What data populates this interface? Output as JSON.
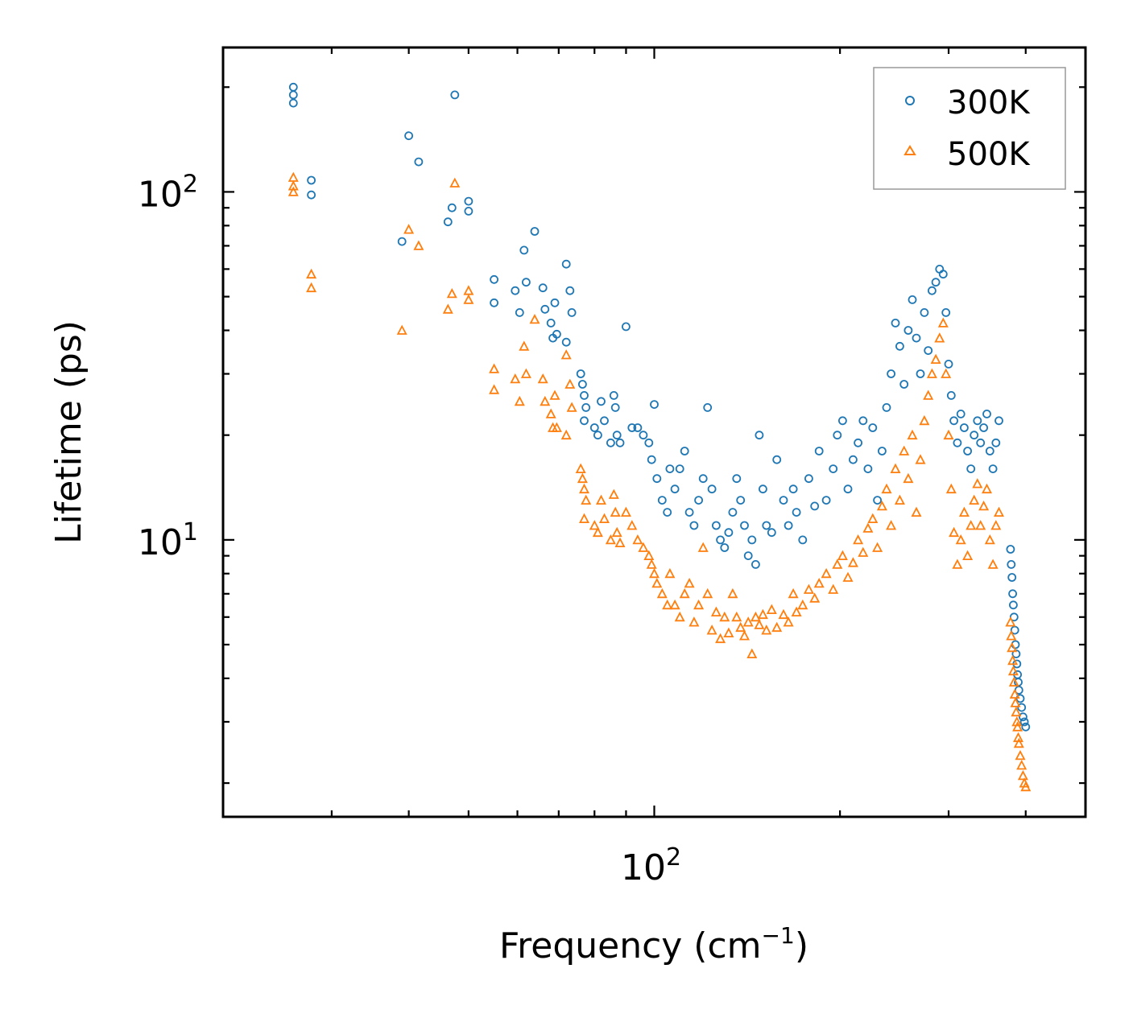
{
  "chart_data": {
    "type": "scatter",
    "title": "",
    "xlabel": "Frequency (cm",
    "xlabel_sup": "−1",
    "xlabel_suffix": ")",
    "ylabel": "Lifetime (ps)",
    "xscale": "log",
    "yscale": "log",
    "xlim": [
      20,
      500
    ],
    "ylim": [
      1.6,
      260
    ],
    "x_ticks": [
      {
        "value": 100,
        "base": "10",
        "exp": "2"
      }
    ],
    "y_ticks": [
      {
        "value": 10,
        "base": "10",
        "exp": "1"
      },
      {
        "value": 100,
        "base": "10",
        "exp": "2"
      }
    ],
    "legend_position": "top-right",
    "series": [
      {
        "name": "300K",
        "marker": "circle",
        "color": "#1f77b4",
        "points": [
          [
            26,
            200
          ],
          [
            26,
            190
          ],
          [
            26,
            180
          ],
          [
            27.8,
            108
          ],
          [
            27.8,
            98
          ],
          [
            40,
            145
          ],
          [
            39,
            72
          ],
          [
            41.5,
            122
          ],
          [
            47.5,
            190
          ],
          [
            47,
            90
          ],
          [
            46.3,
            82
          ],
          [
            50,
            94
          ],
          [
            50,
            88
          ],
          [
            55,
            56
          ],
          [
            55,
            48
          ],
          [
            59.5,
            52
          ],
          [
            60.5,
            45
          ],
          [
            61.5,
            68
          ],
          [
            62,
            55
          ],
          [
            64,
            77
          ],
          [
            66,
            53
          ],
          [
            66.5,
            46
          ],
          [
            68,
            42
          ],
          [
            68.5,
            38
          ],
          [
            69,
            48
          ],
          [
            69.5,
            39
          ],
          [
            72,
            62
          ],
          [
            72,
            37
          ],
          [
            73,
            52
          ],
          [
            73.5,
            45
          ],
          [
            76,
            30
          ],
          [
            76.5,
            28
          ],
          [
            77,
            26
          ],
          [
            77.5,
            24
          ],
          [
            77,
            22
          ],
          [
            80,
            21
          ],
          [
            81,
            20
          ],
          [
            82,
            25
          ],
          [
            83,
            22
          ],
          [
            85,
            19
          ],
          [
            86,
            26
          ],
          [
            86.5,
            24
          ],
          [
            87,
            20
          ],
          [
            88,
            19
          ],
          [
            90,
            41
          ],
          [
            92,
            21
          ],
          [
            94,
            21
          ],
          [
            96,
            20
          ],
          [
            98,
            19
          ],
          [
            99,
            17
          ],
          [
            100,
            24.5
          ],
          [
            101,
            15
          ],
          [
            103,
            13
          ],
          [
            105,
            12
          ],
          [
            106,
            16
          ],
          [
            108,
            14
          ],
          [
            110,
            16
          ],
          [
            112,
            18
          ],
          [
            114,
            12
          ],
          [
            116,
            11
          ],
          [
            118,
            13
          ],
          [
            120,
            15
          ],
          [
            122,
            24
          ],
          [
            124,
            14
          ],
          [
            126,
            11
          ],
          [
            128,
            10
          ],
          [
            130,
            9.5
          ],
          [
            132,
            10.5
          ],
          [
            134,
            12
          ],
          [
            136,
            15
          ],
          [
            138,
            13
          ],
          [
            140,
            11
          ],
          [
            142,
            9
          ],
          [
            144,
            10
          ],
          [
            146,
            8.5
          ],
          [
            148,
            20
          ],
          [
            150,
            14
          ],
          [
            152,
            11
          ],
          [
            155,
            10.5
          ],
          [
            158,
            17
          ],
          [
            162,
            13
          ],
          [
            165,
            11
          ],
          [
            168,
            14
          ],
          [
            170,
            12
          ],
          [
            174,
            10
          ],
          [
            178,
            15
          ],
          [
            182,
            12.5
          ],
          [
            185,
            18
          ],
          [
            190,
            13
          ],
          [
            195,
            16
          ],
          [
            198,
            20
          ],
          [
            202,
            22
          ],
          [
            206,
            14
          ],
          [
            210,
            17
          ],
          [
            214,
            19
          ],
          [
            218,
            22
          ],
          [
            222,
            16
          ],
          [
            226,
            21
          ],
          [
            230,
            13
          ],
          [
            234,
            18
          ],
          [
            238,
            24
          ],
          [
            242,
            30
          ],
          [
            246,
            42
          ],
          [
            250,
            36
          ],
          [
            254,
            28
          ],
          [
            258,
            40
          ],
          [
            262,
            49
          ],
          [
            266,
            38
          ],
          [
            270,
            30
          ],
          [
            274,
            45
          ],
          [
            278,
            35
          ],
          [
            282,
            52
          ],
          [
            286,
            55
          ],
          [
            290,
            60
          ],
          [
            294,
            58
          ],
          [
            297,
            45
          ],
          [
            300,
            32
          ],
          [
            303,
            26
          ],
          [
            306,
            22
          ],
          [
            310,
            19
          ],
          [
            314,
            23
          ],
          [
            318,
            21
          ],
          [
            322,
            18
          ],
          [
            326,
            16
          ],
          [
            330,
            20
          ],
          [
            334,
            22
          ],
          [
            338,
            19
          ],
          [
            342,
            21
          ],
          [
            346,
            23
          ],
          [
            350,
            18
          ],
          [
            354,
            16
          ],
          [
            358,
            19
          ],
          [
            362,
            22
          ],
          [
            378,
            9.4
          ],
          [
            379,
            8.5
          ],
          [
            380,
            7.8
          ],
          [
            381,
            7
          ],
          [
            382,
            6.5
          ],
          [
            383,
            6
          ],
          [
            384,
            5.5
          ],
          [
            385,
            5
          ],
          [
            386,
            4.7
          ],
          [
            387,
            4.4
          ],
          [
            388,
            4.1
          ],
          [
            389,
            3.9
          ],
          [
            390,
            3.7
          ],
          [
            392,
            3.5
          ],
          [
            394,
            3.3
          ],
          [
            396,
            3.1
          ],
          [
            398,
            3.0
          ],
          [
            400,
            2.9
          ]
        ]
      },
      {
        "name": "500K",
        "marker": "triangle",
        "color": "#ff7f0e",
        "points": [
          [
            26,
            110
          ],
          [
            26,
            104
          ],
          [
            26,
            100
          ],
          [
            27.8,
            58
          ],
          [
            27.8,
            53
          ],
          [
            40,
            78
          ],
          [
            39,
            40
          ],
          [
            41.5,
            70
          ],
          [
            47.5,
            106
          ],
          [
            47,
            51
          ],
          [
            46.3,
            46
          ],
          [
            50,
            52
          ],
          [
            50,
            49
          ],
          [
            55,
            31
          ],
          [
            55,
            27
          ],
          [
            59.5,
            29
          ],
          [
            60.5,
            25
          ],
          [
            61.5,
            36
          ],
          [
            62,
            30
          ],
          [
            64,
            43
          ],
          [
            66,
            29
          ],
          [
            66.5,
            25
          ],
          [
            68,
            23
          ],
          [
            68.5,
            21
          ],
          [
            69,
            26
          ],
          [
            69.5,
            21
          ],
          [
            72,
            34
          ],
          [
            72,
            20
          ],
          [
            73,
            28
          ],
          [
            73.5,
            24
          ],
          [
            76,
            16
          ],
          [
            76.5,
            15
          ],
          [
            77,
            14
          ],
          [
            77.5,
            13
          ],
          [
            77,
            11.5
          ],
          [
            80,
            11
          ],
          [
            81,
            10.5
          ],
          [
            82,
            13
          ],
          [
            83,
            11.5
          ],
          [
            85,
            10
          ],
          [
            86,
            13.5
          ],
          [
            86.5,
            12
          ],
          [
            87,
            10.5
          ],
          [
            88,
            9.8
          ],
          [
            90,
            12
          ],
          [
            92,
            11
          ],
          [
            94,
            10
          ],
          [
            96,
            9.5
          ],
          [
            98,
            9
          ],
          [
            99,
            8.5
          ],
          [
            100,
            8
          ],
          [
            101,
            7.5
          ],
          [
            103,
            7
          ],
          [
            105,
            6.5
          ],
          [
            106,
            8
          ],
          [
            108,
            6.5
          ],
          [
            110,
            6
          ],
          [
            112,
            7
          ],
          [
            114,
            7.5
          ],
          [
            116,
            5.8
          ],
          [
            118,
            6.5
          ],
          [
            120,
            9.5
          ],
          [
            122,
            7
          ],
          [
            124,
            5.5
          ],
          [
            126,
            6.2
          ],
          [
            128,
            5.2
          ],
          [
            130,
            6
          ],
          [
            132,
            5.4
          ],
          [
            134,
            7
          ],
          [
            136,
            6
          ],
          [
            138,
            5.6
          ],
          [
            140,
            5.3
          ],
          [
            142,
            5.8
          ],
          [
            144,
            4.7
          ],
          [
            146,
            6
          ],
          [
            148,
            5.7
          ],
          [
            150,
            6.1
          ],
          [
            152,
            5.5
          ],
          [
            155,
            6.3
          ],
          [
            158,
            5.6
          ],
          [
            162,
            6.1
          ],
          [
            165,
            5.8
          ],
          [
            168,
            7
          ],
          [
            170,
            6.2
          ],
          [
            174,
            6.5
          ],
          [
            178,
            7.2
          ],
          [
            182,
            6.8
          ],
          [
            185,
            7.5
          ],
          [
            190,
            8
          ],
          [
            195,
            7.2
          ],
          [
            198,
            8.5
          ],
          [
            202,
            9
          ],
          [
            206,
            7.8
          ],
          [
            210,
            8.6
          ],
          [
            214,
            10
          ],
          [
            218,
            9.2
          ],
          [
            222,
            10.8
          ],
          [
            226,
            11.5
          ],
          [
            230,
            9.5
          ],
          [
            234,
            12.5
          ],
          [
            238,
            14
          ],
          [
            242,
            11
          ],
          [
            246,
            16
          ],
          [
            250,
            13
          ],
          [
            254,
            18
          ],
          [
            258,
            15
          ],
          [
            262,
            20
          ],
          [
            266,
            12
          ],
          [
            270,
            17
          ],
          [
            274,
            22
          ],
          [
            278,
            26
          ],
          [
            282,
            30
          ],
          [
            286,
            33
          ],
          [
            290,
            38
          ],
          [
            294,
            42
          ],
          [
            297,
            30
          ],
          [
            300,
            20
          ],
          [
            303,
            14
          ],
          [
            306,
            10.5
          ],
          [
            310,
            8.5
          ],
          [
            314,
            10
          ],
          [
            318,
            12
          ],
          [
            322,
            9
          ],
          [
            326,
            11
          ],
          [
            330,
            13
          ],
          [
            334,
            14.5
          ],
          [
            338,
            11
          ],
          [
            342,
            12.5
          ],
          [
            346,
            14
          ],
          [
            350,
            10
          ],
          [
            354,
            8.5
          ],
          [
            358,
            11
          ],
          [
            362,
            12
          ],
          [
            378,
            5.8
          ],
          [
            379,
            5.3
          ],
          [
            380,
            4.9
          ],
          [
            381,
            4.5
          ],
          [
            382,
            4.2
          ],
          [
            383,
            3.9
          ],
          [
            384,
            3.6
          ],
          [
            385,
            3.4
          ],
          [
            386,
            3.2
          ],
          [
            387,
            3.0
          ],
          [
            388,
            2.9
          ],
          [
            389,
            2.7
          ],
          [
            390,
            2.6
          ],
          [
            392,
            2.4
          ],
          [
            394,
            2.25
          ],
          [
            396,
            2.1
          ],
          [
            398,
            2.0
          ],
          [
            400,
            1.95
          ]
        ]
      }
    ]
  }
}
